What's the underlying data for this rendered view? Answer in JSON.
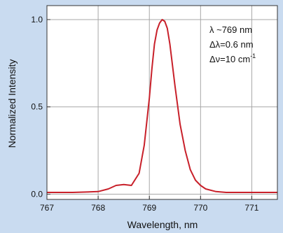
{
  "chart_data": {
    "type": "line",
    "xlabel": "Wavelength, nm",
    "ylabel": "Normalized Intensity",
    "xlim": [
      767,
      771.5
    ],
    "ylim": [
      -0.03,
      1.08
    ],
    "xticks": [
      "767",
      "768",
      "769",
      "770",
      "771"
    ],
    "yticks": [
      "0.0",
      "0.5",
      "1.0"
    ],
    "grid": true,
    "annotations": [
      "λ ~769 nm",
      "Δλ=0.6 nm",
      "Δν=10 cm",
      "-1"
    ],
    "line_color": "#c8202a",
    "series": [
      {
        "x": [
          767.0,
          767.5,
          768.0,
          768.2,
          768.35,
          768.5,
          768.65,
          768.8,
          768.9,
          769.0,
          769.05,
          769.1,
          769.15,
          769.2,
          769.25,
          769.3,
          769.35,
          769.4,
          769.5,
          769.6,
          769.7,
          769.8,
          769.9,
          770.0,
          770.1,
          770.3,
          770.5,
          771.0,
          771.5
        ],
        "y": [
          0.01,
          0.01,
          0.015,
          0.03,
          0.05,
          0.055,
          0.05,
          0.12,
          0.28,
          0.55,
          0.72,
          0.86,
          0.94,
          0.98,
          1.0,
          0.99,
          0.95,
          0.86,
          0.62,
          0.4,
          0.25,
          0.14,
          0.08,
          0.05,
          0.03,
          0.015,
          0.01,
          0.01,
          0.01
        ]
      }
    ]
  }
}
